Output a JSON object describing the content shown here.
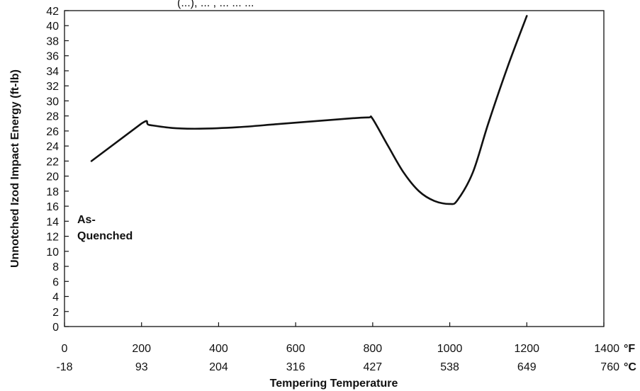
{
  "chart_data": {
    "type": "line",
    "title": "(...), ... , ... ... ...",
    "xlabel": "Tempering Temperature",
    "ylabel": "Unnotched Izod Impact Energy (ft-lb)",
    "xlim": [
      0,
      1400
    ],
    "ylim": [
      0,
      42
    ],
    "x_ticks_f": [
      "0",
      "200",
      "400",
      "600",
      "800",
      "1000",
      "1200",
      "1400"
    ],
    "x_ticks_c": [
      "-18",
      "93",
      "204",
      "316",
      "427",
      "538",
      "649",
      "760"
    ],
    "x_unit_f": "°F",
    "x_unit_c": "°C",
    "y_ticks": [
      "0",
      "2",
      "4",
      "6",
      "8",
      "10",
      "12",
      "14",
      "16",
      "18",
      "20",
      "22",
      "24",
      "26",
      "28",
      "30",
      "32",
      "34",
      "36",
      "38",
      "40",
      "42"
    ],
    "annotation": {
      "line1": "As-",
      "line2": "Quenched"
    },
    "grid": false,
    "series": [
      {
        "x": [
          70,
          200,
          220,
          280,
          350,
          450,
          550,
          650,
          750,
          790,
          800,
          840,
          880,
          920,
          960,
          1000,
          1020,
          1060,
          1100,
          1150,
          1200
        ],
        "y": [
          22,
          27,
          26.8,
          26.4,
          26.3,
          26.5,
          26.9,
          27.3,
          27.7,
          27.8,
          27.6,
          24,
          20.5,
          18,
          16.7,
          16.3,
          16.8,
          20.5,
          27,
          34.5,
          41.3
        ]
      }
    ]
  }
}
